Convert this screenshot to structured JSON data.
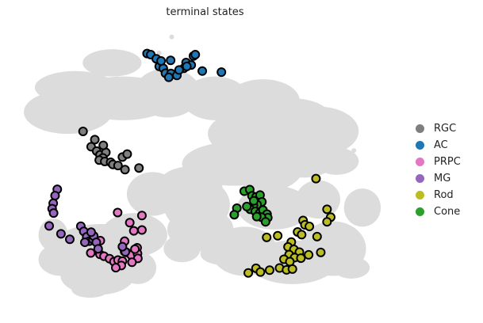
{
  "chart_data": {
    "type": "scatter",
    "title": "terminal states",
    "xlabel": "",
    "ylabel": "",
    "axes_visible": false,
    "grid": false,
    "legend_placement": "right",
    "xlim": [
      0,
      100
    ],
    "ylim": [
      0,
      100
    ],
    "background_color": "#dcdcdc",
    "background_regions": [
      {
        "cx": 24,
        "cy": 12,
        "rx": 8,
        "ry": 5
      },
      {
        "cx": 14,
        "cy": 21,
        "rx": 11,
        "ry": 6
      },
      {
        "cx": 12,
        "cy": 30,
        "rx": 12,
        "ry": 8
      },
      {
        "cx": 27,
        "cy": 25,
        "rx": 14,
        "ry": 8
      },
      {
        "cx": 39,
        "cy": 23,
        "rx": 9,
        "ry": 9
      },
      {
        "cx": 52,
        "cy": 25,
        "rx": 9,
        "ry": 8
      },
      {
        "cx": 65,
        "cy": 26,
        "rx": 10,
        "ry": 8
      },
      {
        "cx": 73,
        "cy": 33,
        "rx": 11,
        "ry": 8
      },
      {
        "cx": 80,
        "cy": 37,
        "rx": 11,
        "ry": 9
      },
      {
        "cx": 63,
        "cy": 38,
        "rx": 13,
        "ry": 9
      },
      {
        "cx": 57,
        "cy": 49,
        "rx": 14,
        "ry": 8
      },
      {
        "cx": 66,
        "cy": 50,
        "rx": 10,
        "ry": 9
      },
      {
        "cx": 76,
        "cy": 47,
        "rx": 9,
        "ry": 7
      },
      {
        "cx": 85,
        "cy": 48,
        "rx": 6,
        "ry": 5
      },
      {
        "cx": 45,
        "cy": 58,
        "rx": 9,
        "ry": 8
      },
      {
        "cx": 35,
        "cy": 60,
        "rx": 7,
        "ry": 8
      },
      {
        "cx": 47,
        "cy": 64,
        "rx": 9,
        "ry": 10
      },
      {
        "cx": 48,
        "cy": 73,
        "rx": 9,
        "ry": 8
      },
      {
        "cx": 43,
        "cy": 80,
        "rx": 5,
        "ry": 5
      },
      {
        "cx": 54,
        "cy": 82,
        "rx": 6,
        "ry": 4
      },
      {
        "cx": 21,
        "cy": 79,
        "rx": 13,
        "ry": 8
      },
      {
        "cx": 30,
        "cy": 75,
        "rx": 9,
        "ry": 8
      },
      {
        "cx": 20,
        "cy": 90,
        "rx": 10,
        "ry": 7
      },
      {
        "cx": 10,
        "cy": 84,
        "rx": 6,
        "ry": 6
      },
      {
        "cx": 8,
        "cy": 75,
        "rx": 4,
        "ry": 6
      },
      {
        "cx": 31,
        "cy": 87,
        "rx": 5,
        "ry": 6
      },
      {
        "cx": 18,
        "cy": 95,
        "rx": 5,
        "ry": 3
      },
      {
        "cx": 68,
        "cy": 65,
        "rx": 10,
        "ry": 8
      },
      {
        "cx": 60,
        "cy": 81,
        "rx": 9,
        "ry": 9
      },
      {
        "cx": 73,
        "cy": 85,
        "rx": 12,
        "ry": 8
      },
      {
        "cx": 84,
        "cy": 80,
        "rx": 9,
        "ry": 10
      },
      {
        "cx": 80,
        "cy": 62,
        "rx": 6,
        "ry": 7
      },
      {
        "cx": 92,
        "cy": 65,
        "rx": 5,
        "ry": 7
      },
      {
        "cx": 89,
        "cy": 87,
        "rx": 5,
        "ry": 4
      }
    ],
    "background_points": [
      {
        "x": 40.2,
        "y": 2.5
      },
      {
        "x": 36.8,
        "y": 8.4
      },
      {
        "x": 53.6,
        "y": 15.2
      },
      {
        "x": 33.9,
        "y": 62.3
      },
      {
        "x": 64.5,
        "y": 57.9
      },
      {
        "x": 89.7,
        "y": 44.1
      }
    ],
    "series": [
      {
        "name": "RGC",
        "color": "#7f7f7f",
        "points": [
          {
            "x": 16.1,
            "y": 37.1
          },
          {
            "x": 18.3,
            "y": 42.7
          },
          {
            "x": 19.8,
            "y": 44.3
          },
          {
            "x": 20.7,
            "y": 45.7
          },
          {
            "x": 22.3,
            "y": 44.8
          },
          {
            "x": 21.5,
            "y": 46.8
          },
          {
            "x": 20.5,
            "y": 47.6
          },
          {
            "x": 22.0,
            "y": 48.1
          },
          {
            "x": 23.6,
            "y": 48.4
          },
          {
            "x": 24.2,
            "y": 49.2
          },
          {
            "x": 25.6,
            "y": 49.6
          },
          {
            "x": 26.8,
            "y": 46.5
          },
          {
            "x": 28.1,
            "y": 45.4
          },
          {
            "x": 27.5,
            "y": 51.1
          },
          {
            "x": 31.3,
            "y": 50.5
          },
          {
            "x": 19.3,
            "y": 40.1
          },
          {
            "x": 21.6,
            "y": 42.2
          }
        ]
      },
      {
        "name": "AC",
        "color": "#1f77b4",
        "points": [
          {
            "x": 33.5,
            "y": 8.6
          },
          {
            "x": 34.5,
            "y": 9.0
          },
          {
            "x": 36.0,
            "y": 10.5
          },
          {
            "x": 39.9,
            "y": 11.1
          },
          {
            "x": 36.8,
            "y": 13.3
          },
          {
            "x": 37.9,
            "y": 14.0
          },
          {
            "x": 38.5,
            "y": 15.8
          },
          {
            "x": 40.0,
            "y": 15.9
          },
          {
            "x": 39.4,
            "y": 17.3
          },
          {
            "x": 41.6,
            "y": 16.6
          },
          {
            "x": 43.5,
            "y": 14.0
          },
          {
            "x": 44.1,
            "y": 11.9
          },
          {
            "x": 45.5,
            "y": 12.8
          },
          {
            "x": 46.1,
            "y": 9.5
          },
          {
            "x": 46.6,
            "y": 9.0
          },
          {
            "x": 44.3,
            "y": 13.3
          },
          {
            "x": 48.5,
            "y": 15.0
          },
          {
            "x": 53.7,
            "y": 15.4
          },
          {
            "x": 37.3,
            "y": 11.3
          },
          {
            "x": 42.2,
            "y": 14.6
          }
        ]
      },
      {
        "name": "PRPC",
        "color": "#e377c2",
        "points": [
          {
            "x": 25.5,
            "y": 66.8
          },
          {
            "x": 32.1,
            "y": 67.9
          },
          {
            "x": 28.8,
            "y": 70.5
          },
          {
            "x": 29.9,
            "y": 73.5
          },
          {
            "x": 32.1,
            "y": 73.2
          },
          {
            "x": 20.8,
            "y": 77.1
          },
          {
            "x": 27.4,
            "y": 77.3
          },
          {
            "x": 30.8,
            "y": 79.7
          },
          {
            "x": 18.2,
            "y": 81.6
          },
          {
            "x": 20.7,
            "y": 82.1
          },
          {
            "x": 21.8,
            "y": 82.8
          },
          {
            "x": 23.3,
            "y": 83.7
          },
          {
            "x": 24.5,
            "y": 84.8
          },
          {
            "x": 25.6,
            "y": 84.2
          },
          {
            "x": 26.8,
            "y": 84.6
          },
          {
            "x": 27.9,
            "y": 81.4
          },
          {
            "x": 29.2,
            "y": 82.4
          },
          {
            "x": 30.9,
            "y": 81.8
          },
          {
            "x": 26.5,
            "y": 86.2
          },
          {
            "x": 25.0,
            "y": 87.0
          },
          {
            "x": 27.4,
            "y": 81.1
          },
          {
            "x": 31.0,
            "y": 83.6
          },
          {
            "x": 30.2,
            "y": 80.2
          },
          {
            "x": 29.4,
            "y": 85.0
          }
        ]
      },
      {
        "name": "MG",
        "color": "#9467bd",
        "points": [
          {
            "x": 9.1,
            "y": 58.3
          },
          {
            "x": 8.5,
            "y": 60.6
          },
          {
            "x": 8.0,
            "y": 63.4
          },
          {
            "x": 7.7,
            "y": 65.4
          },
          {
            "x": 8.1,
            "y": 67.0
          },
          {
            "x": 6.9,
            "y": 71.7
          },
          {
            "x": 10.1,
            "y": 74.6
          },
          {
            "x": 12.5,
            "y": 76.6
          },
          {
            "x": 15.5,
            "y": 71.8
          },
          {
            "x": 16.3,
            "y": 73.7
          },
          {
            "x": 17.1,
            "y": 75.7
          },
          {
            "x": 17.8,
            "y": 77.3
          },
          {
            "x": 18.8,
            "y": 76.6
          },
          {
            "x": 19.0,
            "y": 75.4
          },
          {
            "x": 19.7,
            "y": 77.7
          },
          {
            "x": 20.2,
            "y": 80.1
          },
          {
            "x": 16.6,
            "y": 77.7
          },
          {
            "x": 18.3,
            "y": 74.0
          },
          {
            "x": 27.6,
            "y": 81.2
          },
          {
            "x": 26.8,
            "y": 79.3
          }
        ]
      },
      {
        "name": "Rod",
        "color": "#bcbd22",
        "points": [
          {
            "x": 79.4,
            "y": 54.4
          },
          {
            "x": 82.4,
            "y": 65.6
          },
          {
            "x": 83.4,
            "y": 68.5
          },
          {
            "x": 75.9,
            "y": 69.7
          },
          {
            "x": 76.4,
            "y": 71.3
          },
          {
            "x": 77.6,
            "y": 71.9
          },
          {
            "x": 74.4,
            "y": 73.9
          },
          {
            "x": 75.5,
            "y": 74.9
          },
          {
            "x": 72.7,
            "y": 77.6
          },
          {
            "x": 69.0,
            "y": 75.3
          },
          {
            "x": 71.8,
            "y": 79.4
          },
          {
            "x": 73.4,
            "y": 80.3
          },
          {
            "x": 74.9,
            "y": 81.3
          },
          {
            "x": 72.1,
            "y": 82.2
          },
          {
            "x": 73.6,
            "y": 83.3
          },
          {
            "x": 70.7,
            "y": 83.9
          },
          {
            "x": 72.3,
            "y": 84.8
          },
          {
            "x": 75.3,
            "y": 83.5
          },
          {
            "x": 77.4,
            "y": 82.3
          },
          {
            "x": 80.7,
            "y": 81.4
          },
          {
            "x": 69.5,
            "y": 87.1
          },
          {
            "x": 63.1,
            "y": 87.2
          },
          {
            "x": 64.3,
            "y": 88.6
          },
          {
            "x": 66.8,
            "y": 87.9
          },
          {
            "x": 61.0,
            "y": 88.9
          },
          {
            "x": 71.4,
            "y": 87.8
          },
          {
            "x": 79.7,
            "y": 75.6
          },
          {
            "x": 73.0,
            "y": 87.5
          },
          {
            "x": 66.0,
            "y": 75.9
          },
          {
            "x": 82.4,
            "y": 70.2
          }
        ]
      },
      {
        "name": "Cone",
        "color": "#2ca02c",
        "points": [
          {
            "x": 59.9,
            "y": 59.0
          },
          {
            "x": 61.4,
            "y": 58.4
          },
          {
            "x": 62.0,
            "y": 60.7
          },
          {
            "x": 63.1,
            "y": 61.1
          },
          {
            "x": 64.2,
            "y": 60.4
          },
          {
            "x": 64.7,
            "y": 62.9
          },
          {
            "x": 63.4,
            "y": 63.9
          },
          {
            "x": 62.4,
            "y": 64.2
          },
          {
            "x": 61.5,
            "y": 65.6
          },
          {
            "x": 62.9,
            "y": 66.4
          },
          {
            "x": 64.1,
            "y": 67.0
          },
          {
            "x": 65.0,
            "y": 65.9
          },
          {
            "x": 66.1,
            "y": 67.4
          },
          {
            "x": 66.3,
            "y": 68.7
          },
          {
            "x": 64.6,
            "y": 68.5
          },
          {
            "x": 63.3,
            "y": 68.3
          },
          {
            "x": 57.9,
            "y": 65.2
          },
          {
            "x": 57.2,
            "y": 67.6
          },
          {
            "x": 60.6,
            "y": 64.6
          },
          {
            "x": 62.5,
            "y": 62.5
          },
          {
            "x": 65.7,
            "y": 70.2
          }
        ]
      }
    ]
  }
}
